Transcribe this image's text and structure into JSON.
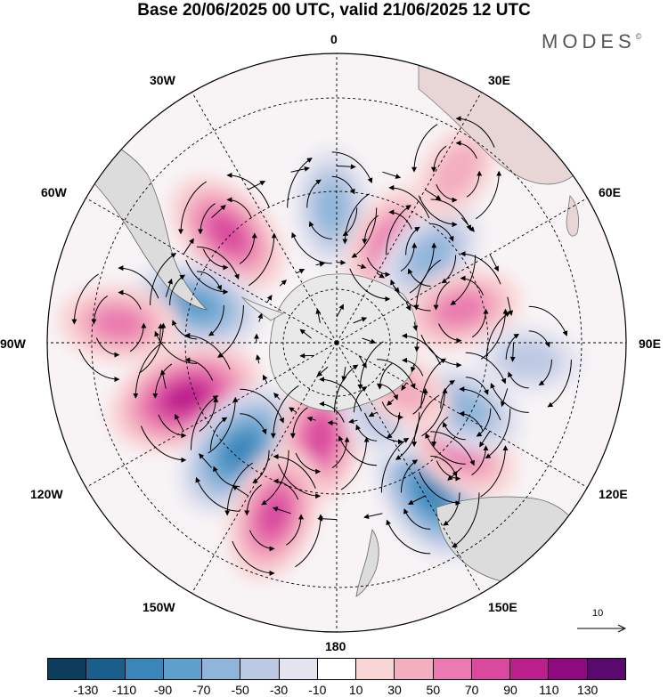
{
  "title": "Base 20/06/2025 00 UTC, valid 21/06/2025 12 UTC",
  "brand": "MODES",
  "brand_mark": "©",
  "longitude_labels": {
    "lon_0": "0",
    "lon_30e": "30E",
    "lon_60e": "60E",
    "lon_90e": "90E",
    "lon_120e": "120E",
    "lon_150e": "150E",
    "lon_180": "180",
    "lon_150w": "150W",
    "lon_120w": "120W",
    "lon_90w": "90W",
    "lon_60w": "60W",
    "lon_30w": "30W"
  },
  "reference_vector": "10",
  "colorbar": {
    "colors": [
      "#0c3d5c",
      "#1a5f8c",
      "#3a86ba",
      "#5f9fcb",
      "#8fb6da",
      "#bdc9e3",
      "#e4e4f0",
      "#ffffff",
      "#f9d6d6",
      "#f3aebf",
      "#ea7ab0",
      "#d94a9e",
      "#bb1f8c",
      "#8f0a80",
      "#5a0a6e"
    ],
    "ticks": [
      "-130",
      "-110",
      "-90",
      "-70",
      "-50",
      "-30",
      "-10",
      "10",
      "30",
      "50",
      "70",
      "90",
      "110",
      "130"
    ]
  },
  "anomaly_centers": [
    {
      "lon": -45,
      "lat": -42,
      "sign": "positive",
      "magnitude": 70
    },
    {
      "lon": -2,
      "lat": -48,
      "sign": "negative",
      "magnitude": 50
    },
    {
      "lon": 28,
      "lat": -55,
      "sign": "positive",
      "magnitude": 50
    },
    {
      "lon": 47,
      "lat": -50,
      "sign": "negative",
      "magnitude": 50
    },
    {
      "lon": 75,
      "lat": -50,
      "sign": "positive",
      "magnitude": 50
    },
    {
      "lon": 95,
      "lat": -30,
      "sign": "negative",
      "magnitude": 30
    },
    {
      "lon": -75,
      "lat": -45,
      "sign": "negative",
      "magnitude": 70
    },
    {
      "lon": -85,
      "lat": -22,
      "sign": "positive",
      "magnitude": 50
    },
    {
      "lon": -110,
      "lat": -40,
      "sign": "positive",
      "magnitude": 100
    },
    {
      "lon": -138,
      "lat": -45,
      "sign": "negative",
      "magnitude": 90
    },
    {
      "lon": -170,
      "lat": -60,
      "sign": "positive",
      "magnitude": 70
    },
    {
      "lon": -160,
      "lat": -33,
      "sign": "positive",
      "magnitude": 70
    },
    {
      "lon": 148,
      "lat": -35,
      "sign": "negative",
      "magnitude": 90
    },
    {
      "lon": 130,
      "lat": -40,
      "sign": "positive",
      "magnitude": 60
    },
    {
      "lon": 117,
      "lat": -45,
      "sign": "negative",
      "magnitude": 50
    },
    {
      "lon": 150,
      "lat": -65,
      "sign": "negative",
      "magnitude": 30
    },
    {
      "lon": 125,
      "lat": -65,
      "sign": "positive",
      "magnitude": 30
    },
    {
      "lon": 35,
      "lat": -25,
      "sign": "positive",
      "magnitude": 30
    }
  ]
}
